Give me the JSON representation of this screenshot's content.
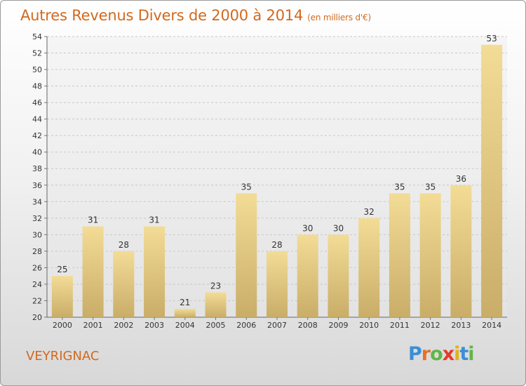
{
  "header": {
    "title": "Autres Revenus Divers de 2000 à 2014",
    "subtitle": "(en milliers d'€)"
  },
  "footer": {
    "town": "VEYRIGNAC",
    "logo_text": "Proxiti"
  },
  "colors": {
    "title": "#d2691e",
    "bar_light": "#f3dc96",
    "bar_dark": "#c9ad68",
    "grid": "#c8c8c8"
  },
  "chart_data": {
    "type": "bar",
    "title": "Autres Revenus Divers de 2000 à 2014",
    "subtitle": "(en milliers d'€)",
    "categories": [
      "2000",
      "2001",
      "2002",
      "2003",
      "2004",
      "2005",
      "2006",
      "2007",
      "2008",
      "2009",
      "2010",
      "2011",
      "2012",
      "2013",
      "2014"
    ],
    "values": [
      25,
      31,
      28,
      31,
      21,
      23,
      35,
      28,
      30,
      30,
      32,
      35,
      35,
      36,
      53
    ],
    "data_labels": [
      "25",
      "31",
      "28",
      "31",
      "21",
      "23",
      "35",
      "28",
      "30",
      "30",
      "32",
      "35",
      "35",
      "36",
      "53"
    ],
    "ylim": [
      20,
      54
    ],
    "yticks": [
      20,
      22,
      24,
      26,
      28,
      30,
      32,
      34,
      36,
      38,
      40,
      42,
      44,
      46,
      48,
      50,
      52,
      54
    ],
    "grid": true,
    "legend": "none"
  }
}
